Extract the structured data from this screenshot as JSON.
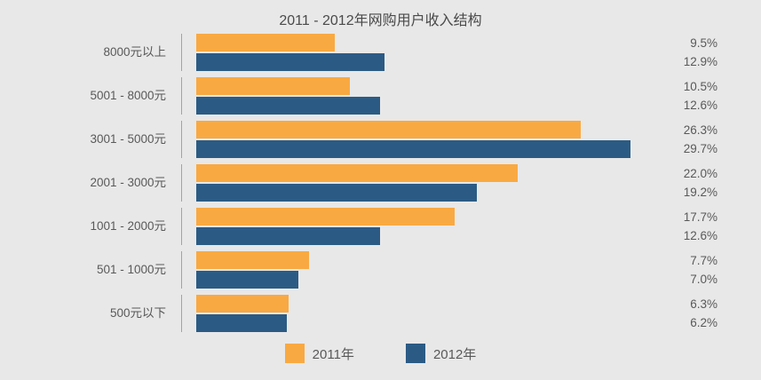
{
  "chart_data": {
    "type": "bar",
    "orientation": "horizontal",
    "title": "2011 - 2012年网购用户收入结构",
    "categories": [
      "8000元以上",
      "5001 - 8000元",
      "3001 - 5000元",
      "2001 - 3000元",
      "1001 - 2000元",
      "501 - 1000元",
      "500元以下"
    ],
    "series": [
      {
        "name": "2011年",
        "color": "#f9a941",
        "values": [
          9.5,
          10.5,
          26.3,
          22.0,
          17.7,
          7.7,
          6.3
        ]
      },
      {
        "name": "2012年",
        "color": "#2b5b84",
        "values": [
          12.9,
          12.6,
          29.7,
          19.2,
          12.6,
          7.0,
          6.2
        ]
      }
    ],
    "value_labels": [
      [
        "9.5%",
        "12.9%"
      ],
      [
        "10.5%",
        "12.6%"
      ],
      [
        "26.3%",
        "29.7%"
      ],
      [
        "22.0%",
        "19.2%"
      ],
      [
        "17.7%",
        "12.6%"
      ],
      [
        "7.7%",
        "7.0%"
      ],
      [
        "6.3%",
        "6.2%"
      ]
    ],
    "xlim": [
      0,
      30
    ],
    "grid": false,
    "legend_position": "bottom"
  },
  "colors": {
    "background": "#e8e8e8",
    "text": "#595959",
    "title_text": "#4a4a4a",
    "axis_line": "#a3a3a3",
    "series_2011": "#f9a941",
    "series_2012": "#2b5b84"
  }
}
